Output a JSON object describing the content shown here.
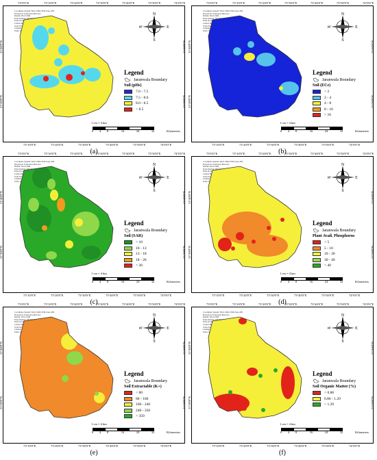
{
  "graticule": {
    "top": [
      "73°0'0\"E",
      "73°10'0\"E",
      "73°20'0\"E",
      "73°30'0\"E",
      "73°40'0\"E",
      "73°50'0\"E",
      "74°0'0\"E"
    ],
    "bottom": [
      "73°10'0\"E",
      "73°20'0\"E",
      "73°30'0\"E",
      "73°40'0\"E",
      "73°50'0\"E",
      "74°0'0\"E"
    ],
    "lat_top": "31°40'0\"N",
    "lat_bottom": "31°20'0\"N"
  },
  "meta_lines": [
    "Coordinate System: WGS 1984 UTM Zone 43N",
    "Projection: Transverse Mercator",
    "Datum: WGS 1984",
    "False Easting: 500,000.0000",
    "False Northing: 0.0000",
    "Central Meridian: 75.0000",
    "Scale Factor: 0.9996",
    "Latitude Of Origin: 0.0000",
    "Units: Meter"
  ],
  "compass": {
    "n": "N",
    "s": "S",
    "e": "E",
    "w": "W"
  },
  "legend_title": "Legend",
  "boundary_label": "Jaranwala Boundary",
  "scale_note": "1 cm = 4 km",
  "scale_ticks": [
    "0",
    "4",
    "8",
    "16",
    "24",
    "32"
  ],
  "scale_unit": "Kilometers",
  "panels": [
    {
      "caption": "(a)",
      "variable": "Soil (pHs)",
      "base": "#f5ef3a",
      "classes": [
        {
          "label": "7.0 - 7.5",
          "color": "#1f2bd6"
        },
        {
          "label": "7.5 - 8.0",
          "color": "#56d8ec"
        },
        {
          "label": "8.0 - 8.5",
          "color": "#f5ef3a"
        },
        {
          "label": "> 8.5",
          "color": "#e2231a"
        }
      ]
    },
    {
      "caption": "(b)",
      "variable": "Soil (ECe)",
      "base": "#1524d8",
      "classes": [
        {
          "label": "< 2",
          "color": "#1524d8"
        },
        {
          "label": "2 - 4",
          "color": "#56c3ea"
        },
        {
          "label": "4 - 8",
          "color": "#f5ef3a"
        },
        {
          "label": "8 - 16",
          "color": "#f39a1e"
        },
        {
          "label": "> 16",
          "color": "#e2231a"
        }
      ]
    },
    {
      "caption": "(c)",
      "variable": "Soil (SAR)",
      "base": "#2aa928",
      "classes": [
        {
          "label": "< 10",
          "color": "#1f8f26"
        },
        {
          "label": "10 - 13",
          "color": "#8ed84a"
        },
        {
          "label": "13 - 18",
          "color": "#f5ef3a"
        },
        {
          "label": "18 - 26",
          "color": "#f39a1e"
        },
        {
          "label": "> 26",
          "color": "#e2231a"
        }
      ]
    },
    {
      "caption": "(d)",
      "variable": "Plant Avail. Phosphorus",
      "base": "#f5ef3a",
      "classes": [
        {
          "label": "< 5",
          "color": "#e2231a"
        },
        {
          "label": "5 - 10",
          "color": "#f08a2a"
        },
        {
          "label": "10 - 30",
          "color": "#f5ef3a"
        },
        {
          "label": "30 - 40",
          "color": "#9ad84a"
        },
        {
          "label": "> 40",
          "color": "#2aa928"
        }
      ]
    },
    {
      "caption": "(e)",
      "variable": "Soil Extractable (K+)",
      "base": "#f08a2a",
      "classes": [
        {
          "label": "< 80",
          "color": "#e2231a"
        },
        {
          "label": "80 - 160",
          "color": "#f08a2a"
        },
        {
          "label": "160 - 240",
          "color": "#f5ef3a"
        },
        {
          "label": "240 - 350",
          "color": "#8ed84a"
        },
        {
          "label": "> 350",
          "color": "#2aa928"
        }
      ]
    },
    {
      "caption": "(f)",
      "variable": "Soil Organic Matter (%)",
      "base": "#f5ef3a",
      "classes": [
        {
          "label": "< 0.86",
          "color": "#e2231a"
        },
        {
          "label": "0.86 - 1.29",
          "color": "#f5ef3a"
        },
        {
          "label": "> 1.29",
          "color": "#2aa928"
        }
      ]
    }
  ]
}
